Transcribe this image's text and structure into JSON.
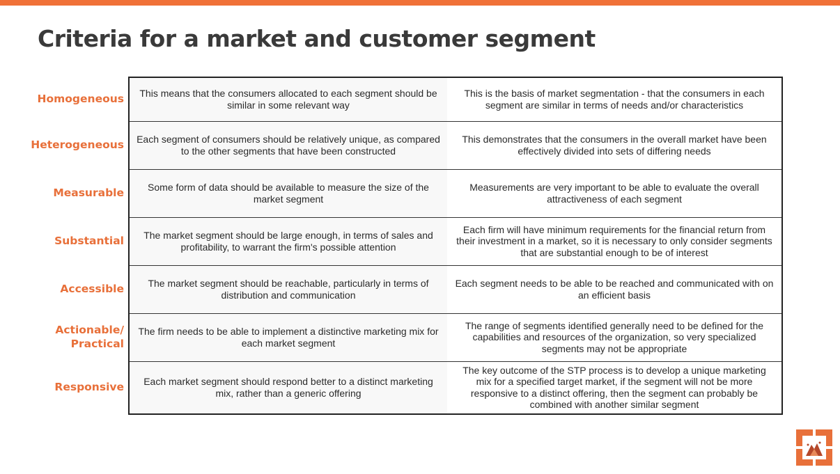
{
  "title": "Criteria for a market and customer segment",
  "rows": [
    {
      "criterion": "Homogeneous",
      "definition": "This means that the consumers allocated to each segment should be similar in some relevant way",
      "explanation": "This is the basis of market segmentation - that the consumers in each segment are similar in terms of needs and/or characteristics"
    },
    {
      "criterion": "Heterogeneous",
      "definition": "Each segment of consumers should be relatively unique, as compared to the other segments that have been constructed",
      "explanation": "This demonstrates that the consumers in the overall market have been effectively divided into sets of differing needs"
    },
    {
      "criterion": "Measurable",
      "definition": "Some form of data should be available to measure the size of the market segment",
      "explanation": "Measurements are very important to be able to evaluate the overall attractiveness of each segment"
    },
    {
      "criterion": "Substantial",
      "definition": "The market segment should be large enough, in terms of sales and profitability, to warrant the firm's possible attention",
      "explanation": "Each firm will have minimum requirements for the financial return from their investment in a market, so it is necessary to only consider segments that are substantial enough to be of interest"
    },
    {
      "criterion": "Accessible",
      "definition": "The market segment should be reachable, particularly in terms of distribution and communication",
      "explanation": "Each segment needs to be able to be reached and communicated with on an efficient basis"
    },
    {
      "criterion": "Actionable/ Practical",
      "definition": "The firm needs to be able to implement a distinctive marketing mix for each market segment",
      "explanation": "The range of segments identified generally need to be defined for the capabilities and resources of the organization, so very specialized segments may not be appropriate"
    },
    {
      "criterion": "Responsive",
      "definition": "Each market segment should respond better to a distinct marketing mix, rather than a generic offering",
      "explanation": "The key outcome of the STP process is to develop a unique marketing mix for a specified target market, if the segment will not be more responsive to a distinct offering, then the segment can probably be combined with another similar segment"
    }
  ],
  "colors": {
    "accent": "#f07138",
    "label": "#e8703a",
    "title": "#3a3a3a"
  },
  "logo_icon": "mountain-square-logo"
}
